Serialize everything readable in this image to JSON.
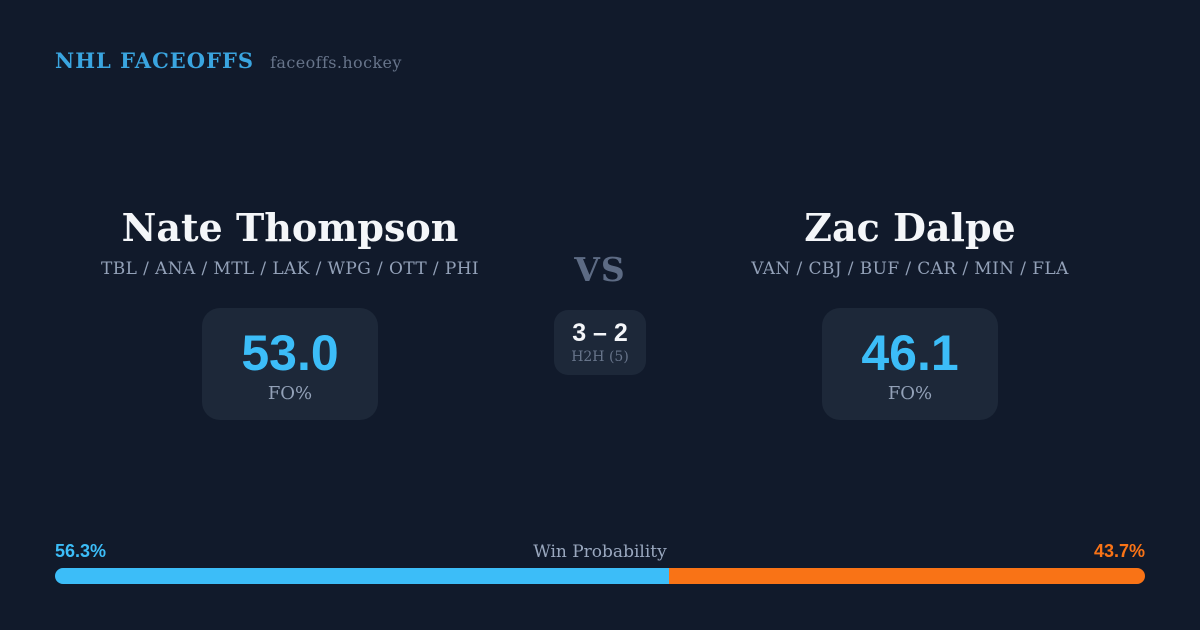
{
  "header": {
    "brand": "NHL FACEOFFS",
    "site": "faceoffs.hockey"
  },
  "players": {
    "left": {
      "name": "Nate Thompson",
      "teams": "TBL / ANA / MTL / LAK / WPG / OTT / PHI",
      "fo_value": "53.0",
      "fo_label": "FO%"
    },
    "right": {
      "name": "Zac Dalpe",
      "teams": "VAN / CBJ / BUF / CAR / MIN / FLA",
      "fo_value": "46.1",
      "fo_label": "FO%"
    }
  },
  "versus": {
    "label": "VS",
    "h2h_score": "3 – 2",
    "h2h_label": "H2H (5)"
  },
  "win_probability": {
    "title": "Win Probability",
    "left_pct_label": "56.3%",
    "right_pct_label": "43.7%",
    "left_value": 56.3,
    "right_value": 43.7
  },
  "colors": {
    "background": "#111a2b",
    "card": "#1d2839",
    "accent_blue": "#3cbdf8",
    "brand_blue": "#3aa5e0",
    "accent_orange": "#f97316",
    "text_primary": "#f4f6f9",
    "text_muted": "#93a1b8",
    "text_faint": "#67748a",
    "vs_gray": "#5d6b84"
  }
}
